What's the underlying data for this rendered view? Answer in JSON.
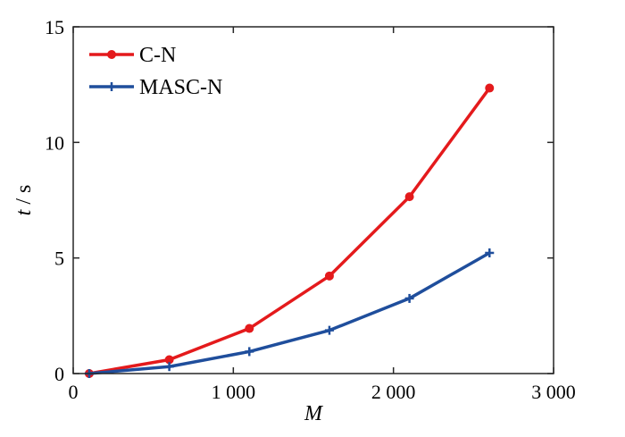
{
  "chart_data": {
    "type": "line",
    "xlabel": "M",
    "ylabel_var": "t",
    "ylabel_unit": "/ s",
    "xlim": [
      0,
      3000
    ],
    "ylim": [
      0,
      15
    ],
    "xticks": [
      0,
      1000,
      2000,
      3000
    ],
    "xtick_labels": [
      "0",
      "1 000",
      "2 000",
      "3 000"
    ],
    "yticks": [
      0,
      5,
      10,
      15
    ],
    "ytick_labels": [
      "0",
      "5",
      "10",
      "15"
    ],
    "grid": false,
    "legend": "top-left",
    "series": [
      {
        "name": "C-N",
        "color": "#e41a1c",
        "marker": "circle",
        "x": [
          100,
          600,
          1100,
          1600,
          2100,
          2600
        ],
        "y": [
          0.0,
          0.6,
          1.95,
          4.22,
          7.65,
          12.35
        ]
      },
      {
        "name": "MASC-N",
        "color": "#1f4e9c",
        "marker": "plus",
        "x": [
          100,
          600,
          1100,
          1600,
          2100,
          2600
        ],
        "y": [
          0.0,
          0.3,
          0.95,
          1.87,
          3.25,
          5.22
        ]
      }
    ]
  }
}
